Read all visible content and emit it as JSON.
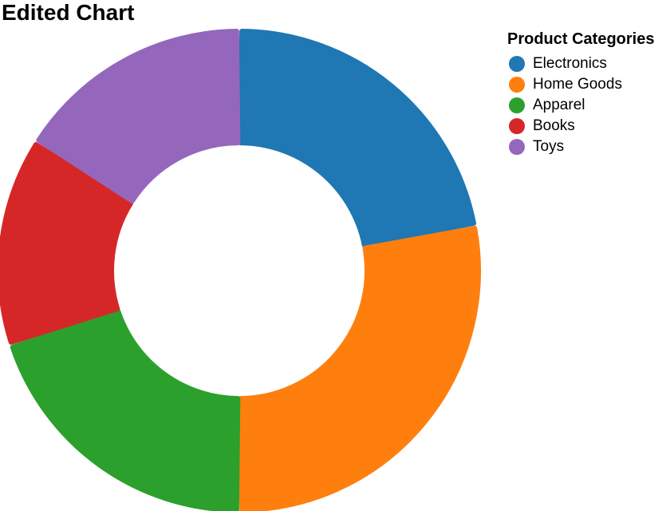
{
  "chart_data": {
    "type": "pie",
    "title": "Edited Chart",
    "legend_title": "Product Categories",
    "legend_position": "top-right",
    "donut": true,
    "categories": [
      "Electronics",
      "Home Goods",
      "Apparel",
      "Books",
      "Toys"
    ],
    "values": [
      22,
      28,
      20,
      14,
      16
    ],
    "colors": [
      "#1f77b4",
      "#ff7f0e",
      "#2ca02c",
      "#d62728",
      "#9467bd"
    ]
  }
}
